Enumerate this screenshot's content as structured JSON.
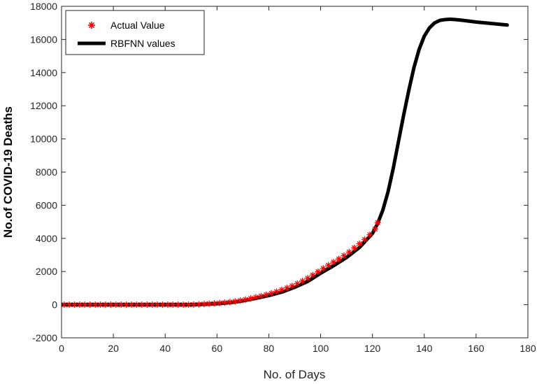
{
  "chart_data": {
    "type": "line",
    "xlabel": "No. of Days",
    "ylabel": "No.of COVID-19 Deaths",
    "xlim": [
      0,
      180
    ],
    "ylim": [
      -2000,
      18000
    ],
    "xticks": [
      "0",
      "20",
      "40",
      "60",
      "80",
      "100",
      "120",
      "140",
      "160",
      "180"
    ],
    "yticks": [
      "-2000",
      "0",
      "2000",
      "4000",
      "6000",
      "8000",
      "10000",
      "12000",
      "14000",
      "16000",
      "18000"
    ],
    "grid": false,
    "legend_position": "top-left",
    "series": [
      {
        "name": "Actual Value",
        "style": "markers",
        "marker": "asterisk",
        "color": "#ff0000",
        "x": [
          1,
          3,
          5,
          7,
          9,
          11,
          13,
          15,
          17,
          19,
          21,
          23,
          25,
          27,
          29,
          31,
          33,
          35,
          37,
          39,
          41,
          43,
          45,
          47,
          49,
          51,
          53,
          55,
          57,
          59,
          61,
          63,
          65,
          67,
          69,
          71,
          73,
          75,
          77,
          79,
          81,
          83,
          85,
          87,
          89,
          91,
          93,
          95,
          97,
          99,
          101,
          103,
          105,
          107,
          109,
          111,
          113,
          115,
          117,
          119,
          121,
          122
        ],
        "y": [
          0,
          0,
          0,
          0,
          0,
          0,
          0,
          0,
          0,
          0,
          0,
          0,
          0,
          0,
          0,
          0,
          0,
          0,
          0,
          0,
          0,
          0,
          0,
          0,
          0,
          10,
          20,
          40,
          60,
          80,
          100,
          130,
          160,
          200,
          250,
          310,
          380,
          450,
          520,
          600,
          690,
          790,
          900,
          1010,
          1130,
          1270,
          1430,
          1600,
          1790,
          1990,
          2190,
          2380,
          2570,
          2760,
          2960,
          3180,
          3430,
          3680,
          3940,
          4220,
          4560,
          4950
        ]
      },
      {
        "name": "RBFNN values",
        "style": "line",
        "color": "#000000",
        "x": [
          0,
          10,
          20,
          30,
          40,
          50,
          55,
          60,
          65,
          70,
          75,
          80,
          85,
          90,
          95,
          100,
          105,
          110,
          115,
          120,
          122,
          124,
          126,
          128,
          130,
          132,
          134,
          136,
          138,
          140,
          142,
          144,
          146,
          148,
          150,
          152,
          155,
          160,
          165,
          172
        ],
        "y": [
          0,
          0,
          0,
          0,
          0,
          0,
          20,
          60,
          120,
          230,
          380,
          550,
          760,
          1050,
          1400,
          1900,
          2350,
          2850,
          3450,
          4300,
          4900,
          5700,
          6800,
          8200,
          9800,
          11400,
          12900,
          14300,
          15400,
          16200,
          16700,
          17000,
          17150,
          17200,
          17220,
          17200,
          17150,
          17050,
          16980,
          16870
        ]
      }
    ]
  }
}
